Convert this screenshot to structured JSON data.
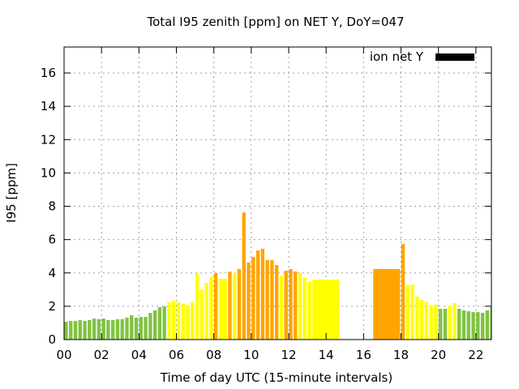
{
  "chart_data": {
    "type": "bar",
    "title": "Total I95 zenith [ppm] on NET Y, DoY=047",
    "xlabel": "Time of day UTC (15-minute intervals)",
    "ylabel": "I95 [ppm]",
    "xlim": [
      0,
      22.83
    ],
    "ylim": [
      0,
      17.56
    ],
    "xticks": [
      0,
      2,
      4,
      6,
      8,
      10,
      12,
      14,
      16,
      18,
      20,
      22
    ],
    "xtick_labels": [
      "00",
      "02",
      "04",
      "06",
      "08",
      "10",
      "12",
      "14",
      "16",
      "18",
      "20",
      "22"
    ],
    "yticks": [
      0,
      2,
      4,
      6,
      8,
      10,
      12,
      14,
      16
    ],
    "ytick_labels": [
      "0",
      "2",
      "4",
      "6",
      "8",
      "10",
      "12",
      "14",
      "16"
    ],
    "grid": true,
    "legend": {
      "label": "ion net Y",
      "color": "#000000",
      "placement": "top-right"
    },
    "colors": {
      "green": "#80c342",
      "yellow": "#ffff00",
      "orange": "#ffa500"
    },
    "interval_hours": 0.25,
    "bars": [
      {
        "t": 0.0,
        "v": 1.07,
        "c": "green"
      },
      {
        "t": 0.25,
        "v": 1.12,
        "c": "green"
      },
      {
        "t": 0.5,
        "v": 1.12,
        "c": "green"
      },
      {
        "t": 0.75,
        "v": 1.17,
        "c": "green"
      },
      {
        "t": 1.0,
        "v": 1.12,
        "c": "green"
      },
      {
        "t": 1.25,
        "v": 1.17,
        "c": "green"
      },
      {
        "t": 1.5,
        "v": 1.26,
        "c": "green"
      },
      {
        "t": 1.75,
        "v": 1.22,
        "c": "green"
      },
      {
        "t": 2.0,
        "v": 1.26,
        "c": "green"
      },
      {
        "t": 2.25,
        "v": 1.17,
        "c": "green"
      },
      {
        "t": 2.5,
        "v": 1.17,
        "c": "green"
      },
      {
        "t": 2.75,
        "v": 1.22,
        "c": "green"
      },
      {
        "t": 3.0,
        "v": 1.22,
        "c": "green"
      },
      {
        "t": 3.25,
        "v": 1.31,
        "c": "green"
      },
      {
        "t": 3.5,
        "v": 1.46,
        "c": "green"
      },
      {
        "t": 3.75,
        "v": 1.31,
        "c": "green"
      },
      {
        "t": 4.0,
        "v": 1.36,
        "c": "green"
      },
      {
        "t": 4.25,
        "v": 1.36,
        "c": "green"
      },
      {
        "t": 4.5,
        "v": 1.6,
        "c": "green"
      },
      {
        "t": 4.75,
        "v": 1.75,
        "c": "green"
      },
      {
        "t": 5.0,
        "v": 1.94,
        "c": "green"
      },
      {
        "t": 5.25,
        "v": 1.99,
        "c": "green"
      },
      {
        "t": 5.5,
        "v": 2.24,
        "c": "yellow"
      },
      {
        "t": 5.75,
        "v": 2.33,
        "c": "yellow"
      },
      {
        "t": 6.0,
        "v": 2.24,
        "c": "yellow"
      },
      {
        "t": 6.25,
        "v": 2.14,
        "c": "yellow"
      },
      {
        "t": 6.5,
        "v": 2.04,
        "c": "yellow"
      },
      {
        "t": 6.75,
        "v": 2.24,
        "c": "yellow"
      },
      {
        "t": 7.0,
        "v": 3.95,
        "c": "yellow"
      },
      {
        "t": 7.25,
        "v": 2.98,
        "c": "yellow"
      },
      {
        "t": 7.5,
        "v": 3.4,
        "c": "yellow"
      },
      {
        "t": 7.75,
        "v": 3.74,
        "c": "yellow"
      },
      {
        "t": 8.0,
        "v": 3.99,
        "c": "orange"
      },
      {
        "t": 8.25,
        "v": 3.65,
        "c": "yellow",
        "d": 0.5
      },
      {
        "t": 8.75,
        "v": 4.08,
        "c": "orange"
      },
      {
        "t": 9.0,
        "v": 3.94,
        "c": "yellow"
      },
      {
        "t": 9.25,
        "v": 4.23,
        "c": "orange"
      },
      {
        "t": 9.5,
        "v": 7.63,
        "c": "orange"
      },
      {
        "t": 9.75,
        "v": 4.62,
        "c": "orange"
      },
      {
        "t": 10.0,
        "v": 4.96,
        "c": "orange"
      },
      {
        "t": 10.25,
        "v": 5.35,
        "c": "orange"
      },
      {
        "t": 10.5,
        "v": 5.45,
        "c": "orange"
      },
      {
        "t": 10.75,
        "v": 4.77,
        "c": "orange"
      },
      {
        "t": 11.0,
        "v": 4.77,
        "c": "orange"
      },
      {
        "t": 11.25,
        "v": 4.47,
        "c": "orange"
      },
      {
        "t": 11.5,
        "v": 3.84,
        "c": "yellow"
      },
      {
        "t": 11.75,
        "v": 4.13,
        "c": "orange"
      },
      {
        "t": 12.0,
        "v": 4.23,
        "c": "orange"
      },
      {
        "t": 12.25,
        "v": 4.08,
        "c": "orange"
      },
      {
        "t": 12.5,
        "v": 3.99,
        "c": "yellow"
      },
      {
        "t": 12.75,
        "v": 3.7,
        "c": "yellow"
      },
      {
        "t": 13.0,
        "v": 3.5,
        "c": "yellow"
      },
      {
        "t": 13.25,
        "v": 3.6,
        "c": "yellow",
        "d": 1.5
      },
      {
        "t": 16.5,
        "v": 4.23,
        "c": "orange",
        "d": 1.5
      },
      {
        "t": 18.0,
        "v": 5.74,
        "c": "orange"
      },
      {
        "t": 18.25,
        "v": 3.26,
        "c": "yellow"
      },
      {
        "t": 18.5,
        "v": 3.31,
        "c": "yellow"
      },
      {
        "t": 18.75,
        "v": 2.58,
        "c": "yellow"
      },
      {
        "t": 19.0,
        "v": 2.38,
        "c": "yellow"
      },
      {
        "t": 19.25,
        "v": 2.24,
        "c": "yellow"
      },
      {
        "t": 19.5,
        "v": 2.04,
        "c": "yellow"
      },
      {
        "t": 19.75,
        "v": 2.09,
        "c": "yellow"
      },
      {
        "t": 20.0,
        "v": 1.85,
        "c": "green"
      },
      {
        "t": 20.25,
        "v": 1.85,
        "c": "green"
      },
      {
        "t": 20.5,
        "v": 2.04,
        "c": "yellow"
      },
      {
        "t": 20.75,
        "v": 2.19,
        "c": "yellow"
      },
      {
        "t": 21.0,
        "v": 1.85,
        "c": "green"
      },
      {
        "t": 21.25,
        "v": 1.75,
        "c": "green"
      },
      {
        "t": 21.5,
        "v": 1.7,
        "c": "green"
      },
      {
        "t": 21.75,
        "v": 1.65,
        "c": "green"
      },
      {
        "t": 22.0,
        "v": 1.65,
        "c": "green"
      },
      {
        "t": 22.25,
        "v": 1.6,
        "c": "green"
      },
      {
        "t": 22.5,
        "v": 1.75,
        "c": "green"
      },
      {
        "t": 22.75,
        "v": 1.94,
        "c": "green"
      }
    ]
  }
}
